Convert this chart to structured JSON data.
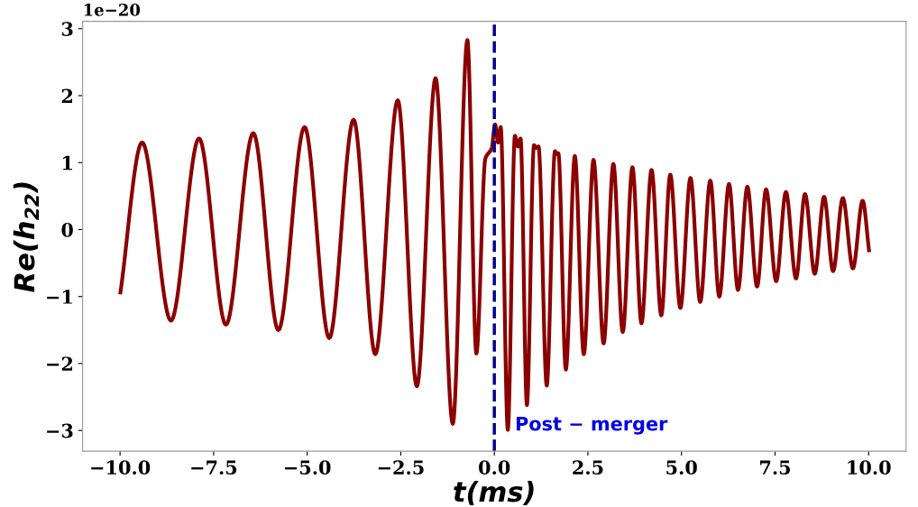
{
  "chart_data": {
    "type": "line",
    "xlabel": "t(ms)",
    "ylabel": "Re(h$_{22}$)",
    "annotations": [
      "1e−20"
    ],
    "x": [
      -9.99,
      -9.41,
      -8.64,
      -7.89,
      -7.17,
      -6.44,
      -5.77,
      -5.07,
      -4.41,
      -3.76,
      -3.18,
      -2.58,
      -2.07,
      -1.57,
      -1.11,
      -0.72,
      -0.48,
      -0.24,
      -0.07,
      0.02,
      0.1,
      0.17,
      0.36,
      0.55,
      0.63,
      0.7,
      0.87,
      1.06,
      1.12,
      1.18,
      1.4,
      1.62,
      1.67,
      1.71,
      1.91,
      2.15,
      2.39,
      2.65,
      2.92,
      3.18,
      3.43,
      3.69,
      3.93,
      4.2,
      4.46,
      4.7,
      4.97,
      5.24,
      5.5,
      5.77,
      6.01,
      6.27,
      6.51,
      6.76,
      7.02,
      7.26,
      7.53,
      7.79,
      8.06,
      8.3,
      8.56,
      8.81,
      9.05,
      9.31,
      9.58,
      9.84,
      10.01
    ],
    "series": [
      {
        "color": "#8b0000",
        "values": [
          -0.94,
          1.3,
          -1.36,
          1.36,
          -1.42,
          1.44,
          -1.5,
          1.53,
          -1.62,
          1.64,
          -1.86,
          1.93,
          -2.34,
          2.26,
          -2.9,
          2.83,
          -1.85,
          1.06,
          1.22,
          1.57,
          1.3,
          1.53,
          -2.99,
          1.4,
          1.24,
          1.36,
          -2.62,
          1.26,
          1.22,
          1.24,
          -2.33,
          1.17,
          1.13,
          1.14,
          -2.09,
          1.1,
          -1.86,
          1.04,
          -1.7,
          0.98,
          -1.53,
          0.93,
          -1.4,
          0.89,
          -1.28,
          0.82,
          -1.17,
          0.77,
          -1.08,
          0.73,
          -1.0,
          0.68,
          -0.9,
          0.64,
          -0.85,
          0.6,
          -0.77,
          0.56,
          -0.73,
          0.53,
          -0.66,
          0.49,
          -0.62,
          0.47,
          -0.58,
          0.43,
          -0.31
        ]
      }
    ],
    "xlim": [
      -11,
      11
    ],
    "ylim": [
      -3.31,
      3.11
    ],
    "xticks": [
      {
        "value": -10,
        "label": "−10.0"
      },
      {
        "value": -7.5,
        "label": "−7.5"
      },
      {
        "value": -5,
        "label": "−5.0"
      },
      {
        "value": -2.5,
        "label": "−2.5"
      },
      {
        "value": 0,
        "label": "0.0"
      },
      {
        "value": 2.5,
        "label": "2.5"
      },
      {
        "value": 5,
        "label": "5.0"
      },
      {
        "value": 7.5,
        "label": "7.5"
      },
      {
        "value": 10,
        "label": "10.0"
      }
    ],
    "yticks": [
      {
        "value": -3,
        "label": "−3"
      },
      {
        "value": -2,
        "label": "−2"
      },
      {
        "value": -1,
        "label": "−1"
      },
      0,
      1,
      2,
      3
    ],
    "ref_lines": [
      {
        "axis": "x",
        "value": 0,
        "label": "Post − merger",
        "color": "#00008b",
        "line_style": "dashed"
      }
    ],
    "grid": false,
    "marker": "none",
    "line_style": "solid"
  }
}
